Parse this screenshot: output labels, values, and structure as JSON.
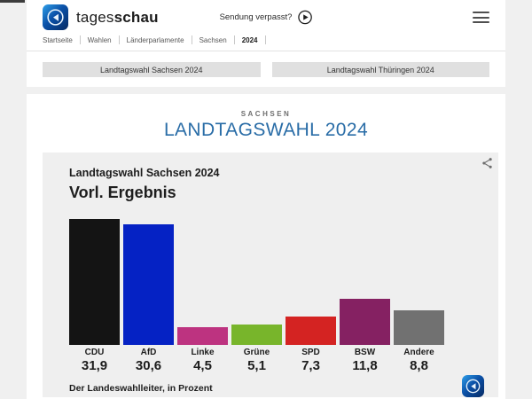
{
  "header": {
    "brand_regular": "tages",
    "brand_bold": "schau",
    "sendung_verpasst_label": "Sendung verpasst?",
    "breadcrumb": [
      "Startseite",
      "Wahlen",
      "Länderparlamente",
      "Sachsen",
      "2024"
    ]
  },
  "tabs": [
    {
      "label": "Landtagswahl Sachsen 2024"
    },
    {
      "label": "Landtagswahl Thüringen 2024"
    }
  ],
  "main": {
    "kicker": "SACHSEN",
    "title": "LANDTAGSWAHL 2024"
  },
  "chart_data": {
    "type": "bar",
    "title": "Landtagswahl Sachsen 2024",
    "subtitle": "Vorl. Ergebnis",
    "source": "Der Landeswahlleiter, in Prozent",
    "unit": "Prozent",
    "categories": [
      "CDU",
      "AfD",
      "Linke",
      "Grüne",
      "SPD",
      "BSW",
      "Andere"
    ],
    "values": [
      31.9,
      30.6,
      4.5,
      5.1,
      7.3,
      11.8,
      8.8
    ],
    "value_labels": [
      "31,9",
      "30,6",
      "4,5",
      "5,1",
      "7,3",
      "11,8",
      "8,8"
    ],
    "bar_colors": [
      "#141414",
      "#0522c4",
      "#bd3380",
      "#78b52b",
      "#d42322",
      "#852162",
      "#717171"
    ],
    "ylim": [
      0,
      32
    ],
    "grid": false,
    "legend": "none"
  },
  "colors": {
    "accent_blue": "#2a6da7",
    "card_bg": "#efefef",
    "tab_bg": "#e0e0e0",
    "page_bg": "#f0f0f0"
  }
}
